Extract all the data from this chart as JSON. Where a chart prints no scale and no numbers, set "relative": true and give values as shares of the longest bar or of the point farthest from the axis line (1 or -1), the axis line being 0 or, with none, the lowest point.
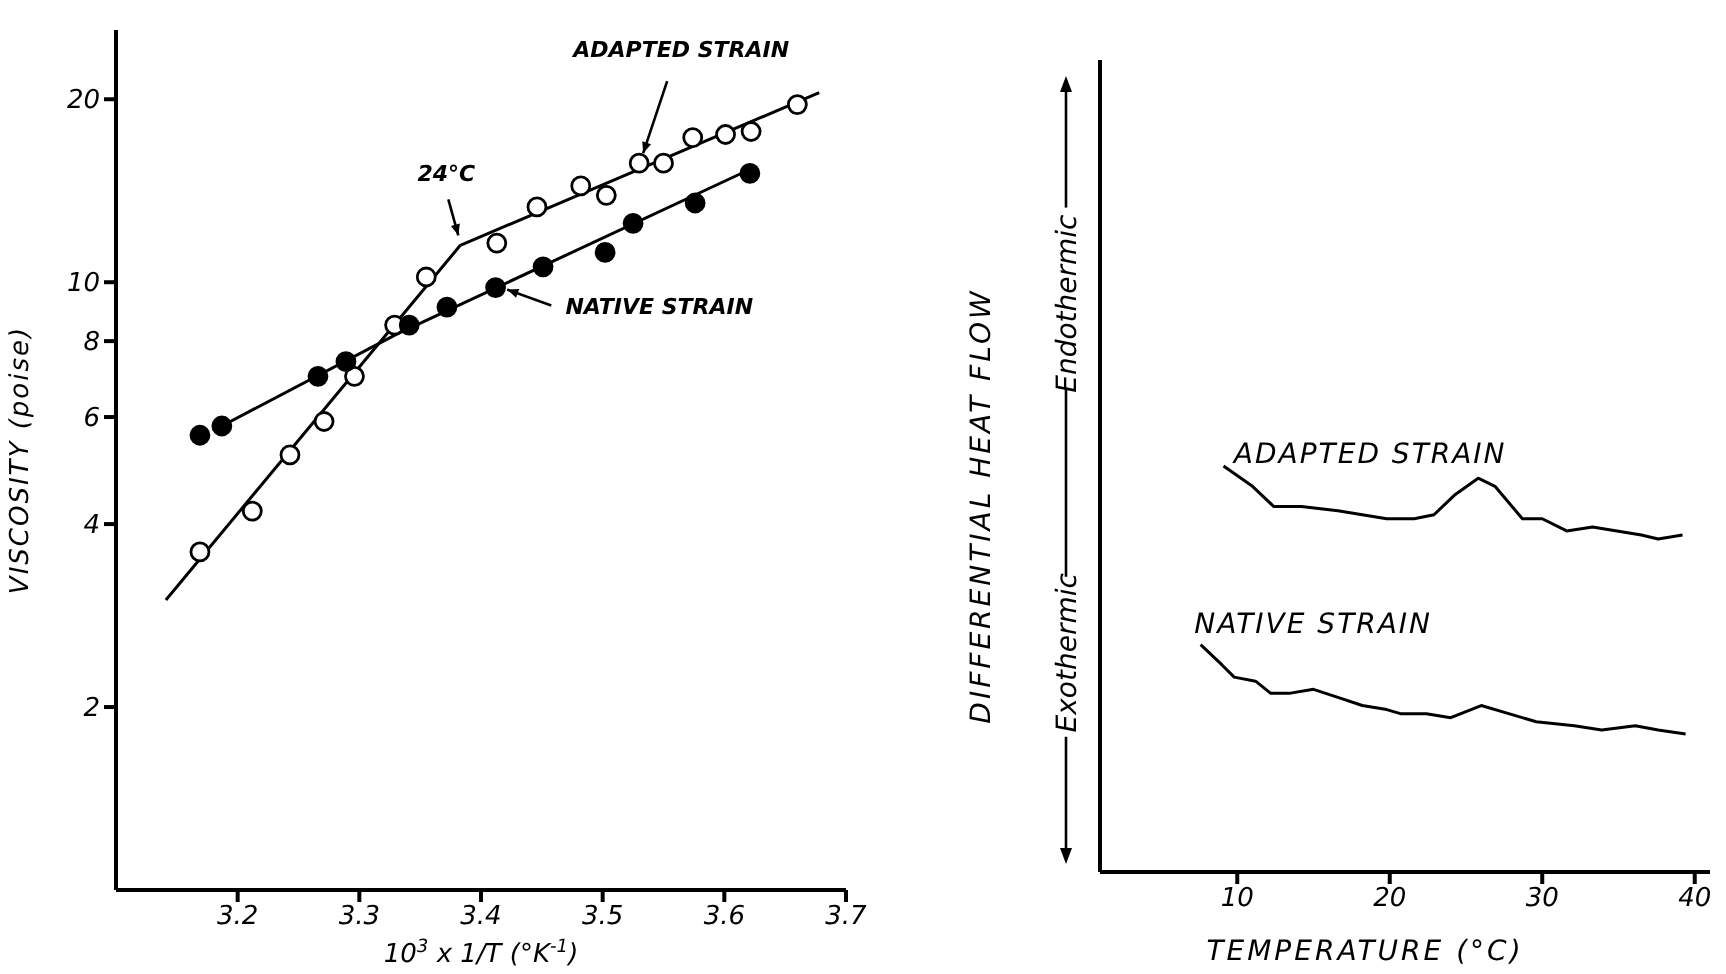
{
  "chart_data": [
    {
      "type": "scatter",
      "xlabel": "10$^{3}$ x 1/T (°K$^{-1}$)",
      "ylabel": "VISCOSITY (poise)",
      "log": "y",
      "marker": "circle",
      "xlim": [
        3.1,
        3.7
      ],
      "xticks": [
        3.2,
        3.3,
        3.4,
        3.5,
        3.6,
        3.7
      ],
      "ylim": [
        1,
        26
      ],
      "yticks": [
        2,
        4,
        6,
        8,
        10,
        20
      ],
      "series": [
        {
          "type": "scatter",
          "color": "#ffffff",
          "x": [
            3.169,
            3.212,
            3.243,
            3.271,
            3.296,
            3.329,
            3.355,
            3.413,
            3.446,
            3.482,
            3.503,
            3.53,
            3.55,
            3.574,
            3.601,
            3.622,
            3.66
          ],
          "values": [
            3.6,
            4.2,
            5.2,
            5.9,
            7.0,
            8.5,
            10.2,
            11.6,
            13.3,
            14.4,
            13.9,
            15.7,
            15.7,
            17.3,
            17.5,
            17.7,
            19.6
          ]
        },
        {
          "type": "scatter",
          "color": "#000000",
          "x": [
            3.169,
            3.187,
            3.266,
            3.289,
            3.341,
            3.372,
            3.412,
            3.451,
            3.502,
            3.525,
            3.576,
            3.621
          ],
          "values": [
            5.6,
            5.8,
            7.0,
            7.4,
            8.5,
            9.1,
            9.8,
            10.6,
            11.2,
            12.5,
            13.5,
            15.1
          ]
        },
        {
          "type": "line",
          "marker": "none",
          "color": "#000000",
          "x": [
            3.141,
            3.383,
            3.678
          ],
          "values": [
            3.0,
            11.5,
            20.5
          ]
        },
        {
          "type": "line",
          "marker": "none",
          "color": "#000000",
          "x": [
            3.187,
            3.33,
            3.623
          ],
          "values": [
            5.8,
            8.2,
            15.4
          ]
        }
      ],
      "annotations": [
        {
          "text": "ADAPTED STRAIN",
          "x": 3.53,
          "y": 15.7
        },
        {
          "text": "24°C",
          "x": 3.383,
          "y": 11.5
        },
        {
          "text": "NATIVE STRAIN",
          "x": 3.415,
          "y": 9.8
        }
      ]
    },
    {
      "type": "line",
      "relative": true,
      "xlabel": "TEMPERATURE (°C)",
      "ylabel": "DIFFERENTIAL HEAT FLOW",
      "xlim": [
        1,
        41
      ],
      "xticks": [
        10,
        20,
        30,
        40
      ],
      "annotations": [
        "Exothermic",
        "Endothermic"
      ],
      "series": [
        {
          "name": "ADAPTED STRAIN",
          "color": "#000000",
          "x": [
            9.1,
            11.0,
            12.4,
            14.2,
            16.6,
            18.2,
            19.8,
            21.6,
            22.9,
            24.3,
            25.8,
            26.9,
            28.7,
            30.0,
            31.6,
            33.3,
            34.9,
            36.5,
            37.6,
            39.2
          ],
          "values": [
            1.0,
            0.95,
            0.9,
            0.9,
            0.89,
            0.88,
            0.87,
            0.87,
            0.88,
            0.93,
            0.97,
            0.95,
            0.87,
            0.87,
            0.84,
            0.85,
            0.84,
            0.83,
            0.82,
            0.83
          ]
        },
        {
          "name": "NATIVE STRAIN",
          "color": "#000000",
          "x": [
            7.6,
            9.0,
            9.8,
            11.2,
            12.2,
            13.4,
            15.0,
            16.6,
            18.2,
            19.8,
            20.7,
            22.4,
            24.0,
            26.0,
            27.8,
            29.6,
            32.1,
            33.9,
            36.1,
            37.6,
            39.4
          ],
          "values": [
            0.56,
            0.51,
            0.48,
            0.47,
            0.44,
            0.44,
            0.45,
            0.43,
            0.41,
            0.4,
            0.39,
            0.39,
            0.38,
            0.41,
            0.39,
            0.37,
            0.36,
            0.35,
            0.36,
            0.35,
            0.34
          ]
        }
      ]
    }
  ]
}
